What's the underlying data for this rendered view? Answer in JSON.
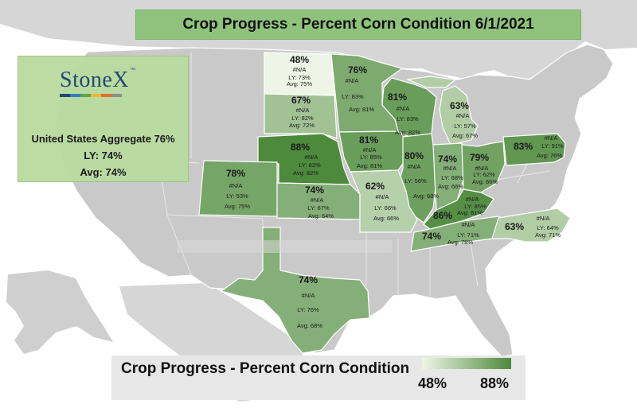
{
  "title": "Crop Progress - Percent Corn Condition 6/1/2021",
  "logo": {
    "text": "StoneX",
    "tm": "™",
    "bar_colors": [
      "#1d3f6e",
      "#2a7ab8",
      "#5aa34a",
      "#f2b72d",
      "#e26a2c",
      "#8a8a8a"
    ]
  },
  "aggregate": {
    "line1": "United States Aggregate 76%",
    "line2": "LY: 74%",
    "line3": "Avg: 74%"
  },
  "legend": {
    "title": "Crop Progress - Percent Corn Condition",
    "min": "48%",
    "max": "88%",
    "min_color": "#eef5e6",
    "max_color": "#4d8a3c"
  },
  "colors": {
    "ocean": "#ffffff",
    "land": "#c9c9c9",
    "canada_mexico": "#d6d6d6"
  },
  "states": [
    {
      "id": "ND",
      "pct": "48%",
      "cur": "#N/A",
      "ly": "LY: 73%",
      "avg": "Avg: 75%",
      "value": 48
    },
    {
      "id": "SD",
      "pct": "67%",
      "cur": "#N/A",
      "ly": "LY: 82%",
      "avg": "Avg: 72%",
      "value": 67
    },
    {
      "id": "NE",
      "pct": "88%",
      "cur": "#N/A",
      "ly": "LY: 82%",
      "avg": "Avg: 82%",
      "value": 88
    },
    {
      "id": "MN",
      "pct": "76%",
      "cur": "#N/A",
      "ly": "LY: 83%",
      "avg": "Avg: 81%",
      "value": 76
    },
    {
      "id": "IA",
      "pct": "81%",
      "cur": "#N/A",
      "ly": "LY: 85%",
      "avg": "Avg: 81%",
      "value": 81
    },
    {
      "id": "WI",
      "pct": "81%",
      "cur": "#N/A",
      "ly": "LY: 83%",
      "avg": "Avg: 82%",
      "value": 81
    },
    {
      "id": "MI",
      "pct": "63%",
      "cur": "#N/A",
      "ly": "LY: 57%",
      "avg": "Avg: 67%",
      "value": 63
    },
    {
      "id": "IL",
      "pct": "80%",
      "cur": "#N/A",
      "ly": "LY: 56%",
      "avg": "Avg: 68%",
      "value": 80
    },
    {
      "id": "IN",
      "pct": "74%",
      "cur": "#N/A",
      "ly": "LY: 68%",
      "avg": "Avg: 66%",
      "value": 74
    },
    {
      "id": "OH",
      "pct": "79%",
      "cur": "#N/A",
      "ly": "LY: 62%",
      "avg": "Avg: 66%",
      "value": 79
    },
    {
      "id": "PA",
      "pct": "83%",
      "cur": "#N/A",
      "ly": "LY: 91%",
      "avg": "Avg: 76%",
      "value": 83
    },
    {
      "id": "CO",
      "pct": "78%",
      "cur": "#N/A",
      "ly": "LY: 53%",
      "avg": "Avg: 75%",
      "value": 78
    },
    {
      "id": "KS",
      "pct": "74%",
      "cur": "#N/A",
      "ly": "LY: 67%",
      "avg": "Avg: 64%",
      "value": 74
    },
    {
      "id": "MO",
      "pct": "62%",
      "cur": "#N/A",
      "ly": "LY: 66%",
      "avg": "Avg: 66%",
      "value": 62
    },
    {
      "id": "KY",
      "pct": "86%",
      "cur": "#N/A",
      "ly": "LY: 85%",
      "avg": "Avg: 81%",
      "value": 86
    },
    {
      "id": "TN",
      "pct": "74%",
      "cur": "#N/A",
      "ly": "LY: 71%",
      "avg": "Avg: 78%",
      "value": 74
    },
    {
      "id": "NC",
      "pct": "63%",
      "cur": "#N/A",
      "ly": "LY: 64%",
      "avg": "Avg: 71%",
      "value": 63
    },
    {
      "id": "TX",
      "pct": "74%",
      "cur": "#N/A",
      "ly": "LY: 76%",
      "avg": "Avg: 68%",
      "value": 74
    }
  ]
}
